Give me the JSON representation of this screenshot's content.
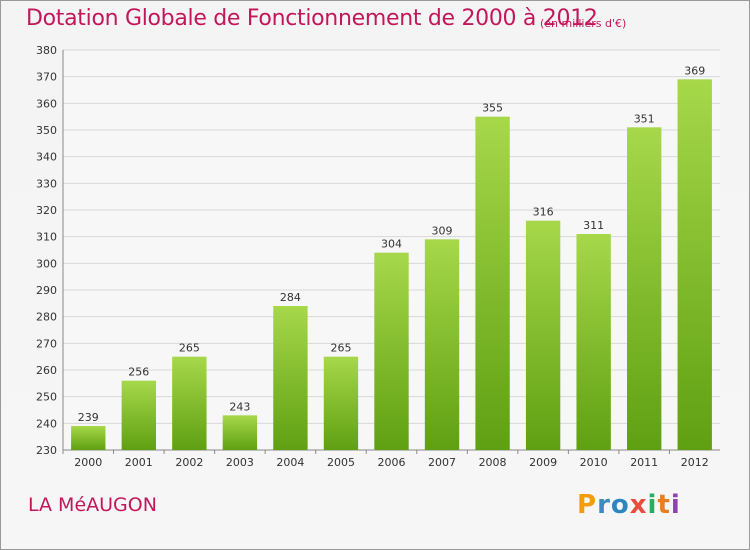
{
  "title": "Dotation Globale de Fonctionnement de 2000 à 2012",
  "subtitle": "(en milliers d'€)",
  "commune": "LA MéAUGON",
  "logo": {
    "letters": [
      "P",
      "r",
      "o",
      "x",
      "i",
      "t",
      "i"
    ],
    "colors": [
      "#f39c12",
      "#3c8dbc",
      "#2e86c1",
      "#e74c3c",
      "#27ae60",
      "#e67e22",
      "#8e44ad"
    ]
  },
  "colors": {
    "bar_top": "#a6d84a",
    "bar_bottom": "#5fa012",
    "grid": "#d8d8d8",
    "title": "#c2185b"
  },
  "chart_data": {
    "type": "bar",
    "categories": [
      "2000",
      "2001",
      "2002",
      "2003",
      "2004",
      "2005",
      "2006",
      "2007",
      "2008",
      "2009",
      "2010",
      "2011",
      "2012"
    ],
    "values": [
      239,
      256,
      265,
      243,
      284,
      265,
      304,
      309,
      355,
      316,
      311,
      351,
      369
    ],
    "ylim": [
      230,
      380
    ],
    "yticks": [
      230,
      240,
      250,
      260,
      270,
      280,
      290,
      300,
      310,
      320,
      330,
      340,
      350,
      360,
      370,
      380
    ],
    "grid": true
  }
}
